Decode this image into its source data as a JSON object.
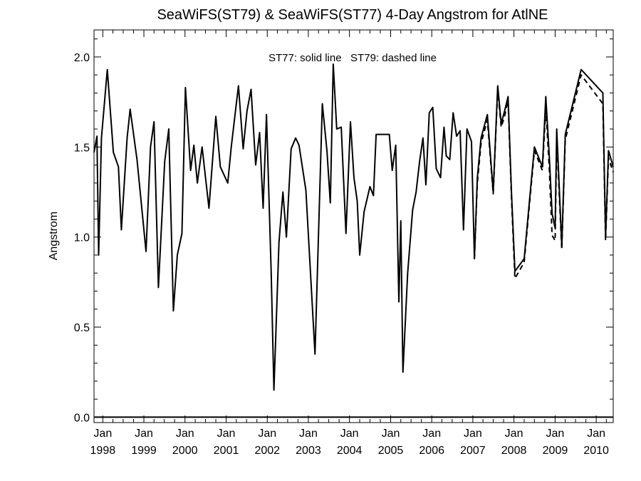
{
  "chart_data": {
    "type": "line",
    "title": "SeaWiFS(ST79) & SeaWiFS(ST77) 4-Day Angstrom for AtlNE",
    "xlabel": "",
    "ylabel": "Angstrom",
    "annotation": "ST77: solid line   ST79: dashed line",
    "xlim": [
      "1997-10-15",
      "2010-06-01"
    ],
    "ylim": [
      -0.03,
      2.15
    ],
    "grid": false,
    "y_ticks": [
      0.0,
      0.5,
      1.0,
      1.5,
      2.0
    ],
    "y_tick_labels": [
      "0.0",
      "0.5",
      "1.0",
      "1.5",
      "2.0"
    ],
    "x_ticks": [
      {
        "date": "1998-01-01",
        "month": "Jan",
        "year": "1998"
      },
      {
        "date": "1999-01-01",
        "month": "Jan",
        "year": "1999"
      },
      {
        "date": "2000-01-01",
        "month": "Jan",
        "year": "2000"
      },
      {
        "date": "2001-01-01",
        "month": "Jan",
        "year": "2001"
      },
      {
        "date": "2002-01-01",
        "month": "Jan",
        "year": "2002"
      },
      {
        "date": "2003-01-01",
        "month": "Jan",
        "year": "2003"
      },
      {
        "date": "2004-01-01",
        "month": "Jan",
        "year": "2004"
      },
      {
        "date": "2005-01-01",
        "month": "Jan",
        "year": "2005"
      },
      {
        "date": "2006-01-01",
        "month": "Jan",
        "year": "2006"
      },
      {
        "date": "2007-01-01",
        "month": "Jan",
        "year": "2007"
      },
      {
        "date": "2008-01-01",
        "month": "Jan",
        "year": "2008"
      },
      {
        "date": "2009-01-01",
        "month": "Jan",
        "year": "2009"
      },
      {
        "date": "2010-01-01",
        "month": "Jan",
        "year": "2010"
      }
    ],
    "series": [
      {
        "name": "ST77",
        "style": "solid",
        "color": "#000000",
        "points": [
          [
            "1997-10-15",
            1.47
          ],
          [
            "1997-11-10",
            1.56
          ],
          [
            "1997-11-25",
            0.9
          ],
          [
            "1997-12-20",
            1.55
          ],
          [
            "1998-02-10",
            1.93
          ],
          [
            "1998-04-05",
            1.47
          ],
          [
            "1998-05-20",
            1.39
          ],
          [
            "1998-06-15",
            1.04
          ],
          [
            "1998-08-05",
            1.55
          ],
          [
            "1998-09-01",
            1.71
          ],
          [
            "1998-11-01",
            1.43
          ],
          [
            "1999-01-20",
            0.92
          ],
          [
            "1999-03-01",
            1.5
          ],
          [
            "1999-04-01",
            1.64
          ],
          [
            "1999-05-10",
            0.72
          ],
          [
            "1999-07-05",
            1.42
          ],
          [
            "1999-08-10",
            1.6
          ],
          [
            "1999-09-20",
            0.59
          ],
          [
            "1999-10-25",
            0.9
          ],
          [
            "1999-12-05",
            1.02
          ],
          [
            "2000-01-05",
            1.83
          ],
          [
            "2000-02-20",
            1.37
          ],
          [
            "2000-03-20",
            1.51
          ],
          [
            "2000-04-20",
            1.3
          ],
          [
            "2000-06-01",
            1.5
          ],
          [
            "2000-08-01",
            1.16
          ],
          [
            "2000-10-01",
            1.67
          ],
          [
            "2000-11-10",
            1.39
          ],
          [
            "2001-01-15",
            1.3
          ],
          [
            "2001-02-15",
            1.5
          ],
          [
            "2001-04-20",
            1.84
          ],
          [
            "2001-06-01",
            1.49
          ],
          [
            "2001-07-05",
            1.7
          ],
          [
            "2001-08-10",
            1.82
          ],
          [
            "2001-09-20",
            1.4
          ],
          [
            "2001-10-25",
            1.58
          ],
          [
            "2001-11-25",
            1.16
          ],
          [
            "2001-12-25",
            1.68
          ],
          [
            "2002-02-05",
            0.8
          ],
          [
            "2002-03-01",
            0.15
          ],
          [
            "2002-04-15",
            0.97
          ],
          [
            "2002-05-20",
            1.25
          ],
          [
            "2002-06-20",
            1.0
          ],
          [
            "2002-08-01",
            1.49
          ],
          [
            "2002-09-10",
            1.55
          ],
          [
            "2002-10-10",
            1.51
          ],
          [
            "2002-12-10",
            1.26
          ],
          [
            "2003-01-20",
            0.8
          ],
          [
            "2003-03-01",
            0.35
          ],
          [
            "2003-05-05",
            1.74
          ],
          [
            "2003-06-15",
            1.48
          ],
          [
            "2003-07-15",
            1.19
          ],
          [
            "2003-08-10",
            1.96
          ],
          [
            "2003-09-10",
            1.6
          ],
          [
            "2003-10-20",
            1.61
          ],
          [
            "2003-12-01",
            1.02
          ],
          [
            "2004-01-10",
            1.64
          ],
          [
            "2004-02-10",
            1.33
          ],
          [
            "2004-03-10",
            1.2
          ],
          [
            "2004-04-01",
            0.9
          ],
          [
            "2004-05-10",
            1.14
          ],
          [
            "2004-07-01",
            1.28
          ],
          [
            "2004-08-01",
            1.23
          ],
          [
            "2004-08-25",
            1.57
          ],
          [
            "2004-12-20",
            1.57
          ],
          [
            "2005-01-15",
            1.37
          ],
          [
            "2005-02-15",
            1.51
          ],
          [
            "2005-03-15",
            0.64
          ],
          [
            "2005-04-01",
            1.09
          ],
          [
            "2005-04-20",
            0.25
          ],
          [
            "2005-06-01",
            0.8
          ],
          [
            "2005-07-15",
            1.15
          ],
          [
            "2005-08-15",
            1.25
          ],
          [
            "2005-09-15",
            1.42
          ],
          [
            "2005-10-15",
            1.55
          ],
          [
            "2005-11-10",
            1.29
          ],
          [
            "2005-12-10",
            1.69
          ],
          [
            "2006-01-10",
            1.72
          ],
          [
            "2006-02-10",
            1.38
          ],
          [
            "2006-03-20",
            1.33
          ],
          [
            "2006-04-20",
            1.61
          ],
          [
            "2006-05-10",
            1.45
          ],
          [
            "2006-06-10",
            1.43
          ],
          [
            "2006-07-10",
            1.69
          ],
          [
            "2006-08-10",
            1.56
          ],
          [
            "2006-09-10",
            1.59
          ],
          [
            "2006-10-10",
            1.04
          ],
          [
            "2006-11-10",
            1.6
          ],
          [
            "2006-12-20",
            1.53
          ],
          [
            "2007-01-15",
            0.88
          ],
          [
            "2007-02-10",
            1.33
          ],
          [
            "2007-03-15",
            1.55
          ],
          [
            "2007-05-10",
            1.68
          ],
          [
            "2007-07-01",
            1.25
          ],
          [
            "2007-08-10",
            1.84
          ],
          [
            "2007-09-10",
            1.63
          ],
          [
            "2007-10-10",
            1.7
          ],
          [
            "2007-11-10",
            1.78
          ],
          [
            "2007-12-10",
            1.25
          ],
          [
            "2008-01-10",
            0.81
          ],
          [
            "2008-04-01",
            0.88
          ],
          [
            "2008-07-01",
            1.5
          ],
          [
            "2008-09-10",
            1.39
          ],
          [
            "2008-10-10",
            1.78
          ],
          [
            "2008-11-10",
            1.45
          ],
          [
            "2008-12-05",
            1.13
          ],
          [
            "2009-01-01",
            1.05
          ],
          [
            "2009-01-15",
            1.6
          ],
          [
            "2009-03-01",
            0.95
          ],
          [
            "2009-04-01",
            1.57
          ],
          [
            "2009-08-20",
            1.93
          ],
          [
            "2010-03-01",
            1.8
          ],
          [
            "2010-03-25",
            1.0
          ],
          [
            "2010-04-20",
            1.48
          ],
          [
            "2010-06-01",
            1.39
          ]
        ]
      },
      {
        "name": "ST79",
        "style": "dashed",
        "color": "#000000",
        "points": [
          [
            "2007-01-15",
            0.88
          ],
          [
            "2007-02-10",
            1.3
          ],
          [
            "2007-03-15",
            1.52
          ],
          [
            "2007-05-10",
            1.65
          ],
          [
            "2007-07-01",
            1.24
          ],
          [
            "2007-08-10",
            1.82
          ],
          [
            "2007-09-10",
            1.61
          ],
          [
            "2007-10-10",
            1.67
          ],
          [
            "2007-11-10",
            1.76
          ],
          [
            "2007-12-10",
            1.22
          ],
          [
            "2008-01-10",
            0.77
          ],
          [
            "2008-04-01",
            0.86
          ],
          [
            "2008-07-01",
            1.48
          ],
          [
            "2008-09-10",
            1.37
          ],
          [
            "2008-10-10",
            1.72
          ],
          [
            "2008-11-10",
            1.38
          ],
          [
            "2008-12-05",
            1.01
          ],
          [
            "2009-01-01",
            0.98
          ],
          [
            "2009-01-15",
            1.55
          ],
          [
            "2009-03-01",
            0.93
          ],
          [
            "2009-04-01",
            1.54
          ],
          [
            "2009-08-20",
            1.9
          ],
          [
            "2010-03-01",
            1.74
          ],
          [
            "2010-03-25",
            0.98
          ],
          [
            "2010-04-20",
            1.44
          ],
          [
            "2010-06-01",
            1.36
          ]
        ]
      }
    ]
  }
}
